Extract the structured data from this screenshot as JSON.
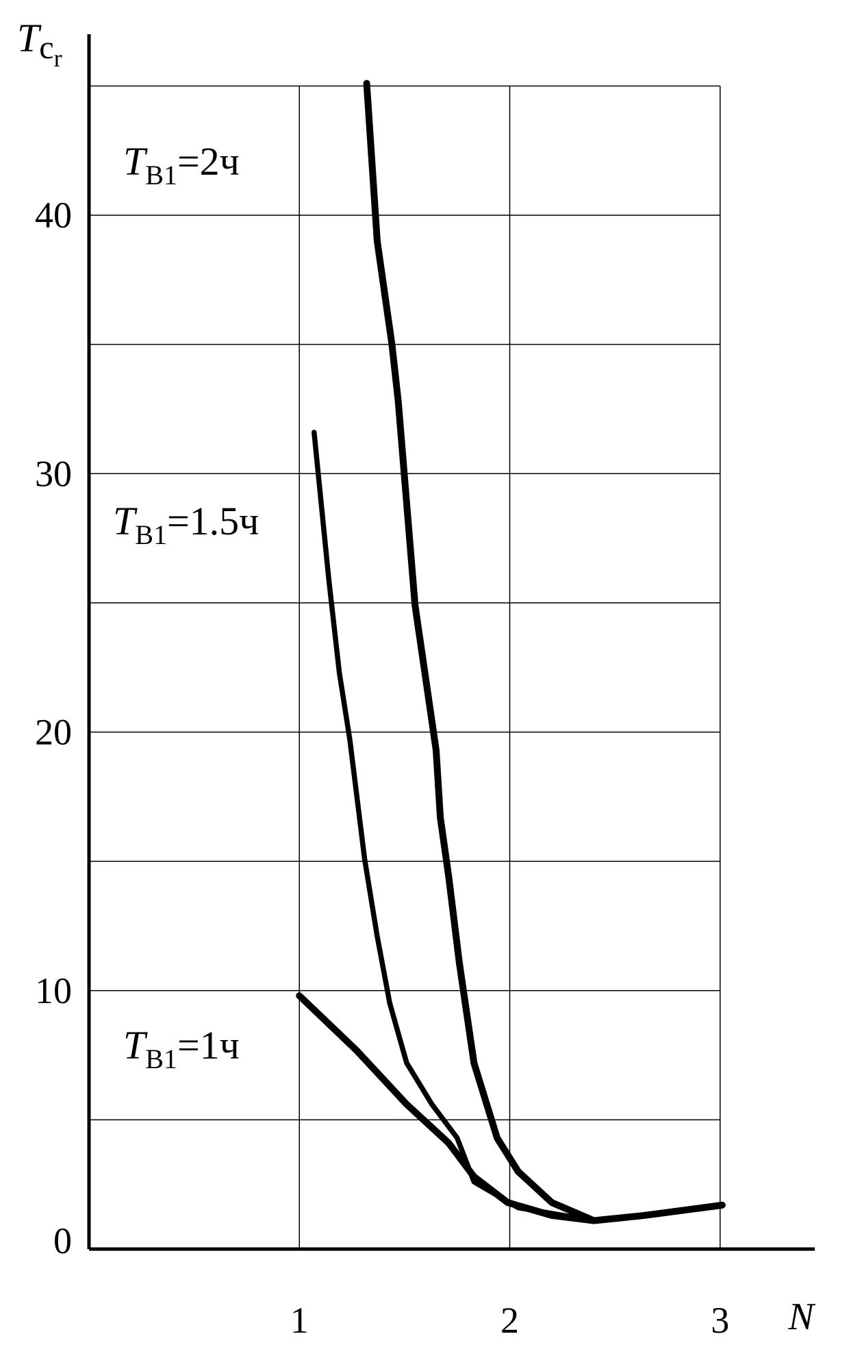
{
  "chart_data": {
    "type": "line",
    "x_label": "N",
    "y_label": {
      "symbol": "T",
      "subscript": "c",
      "subsubscript": "r"
    },
    "xlim": [
      0,
      3.45
    ],
    "ylim": [
      0,
      47
    ],
    "xticks": [
      1,
      2,
      3
    ],
    "yticks": [
      0,
      10,
      20,
      30,
      40
    ],
    "yminor": [
      5,
      15,
      25,
      35,
      45
    ],
    "grid": true,
    "color": "#000000",
    "series": [
      {
        "name": {
          "symbol": "T",
          "subscript": "B1",
          "text": "=2ч"
        },
        "x": [
          1.32,
          1.37,
          1.44,
          1.47,
          1.55,
          1.65,
          1.67,
          1.71,
          1.76,
          1.83,
          1.94,
          2.04,
          2.2,
          2.4,
          2.64,
          3.01
        ],
        "values": [
          45.1,
          39,
          35,
          32.8,
          24.9,
          19.3,
          16.7,
          14.4,
          11.1,
          7.2,
          4.3,
          3.0,
          1.8,
          1.1,
          1.3,
          1.7
        ]
      },
      {
        "name": {
          "symbol": "T",
          "subscript": "B1",
          "text": "=1.5ч"
        },
        "x": [
          1.07,
          1.14,
          1.19,
          1.24,
          1.31,
          1.37,
          1.43,
          1.51,
          1.63,
          1.75,
          1.83,
          2.04,
          2.4
        ],
        "values": [
          31.6,
          25.9,
          22.3,
          19.7,
          15.1,
          12.1,
          9.5,
          7.2,
          5.6,
          4.3,
          2.6,
          1.6,
          1.1
        ]
      },
      {
        "name": {
          "symbol": "T",
          "subscript": "B1",
          "text": "=1ч"
        },
        "x": [
          1.0,
          1.27,
          1.51,
          1.71,
          1.83,
          1.99,
          2.2,
          2.4
        ],
        "values": [
          9.8,
          7.7,
          5.6,
          4.1,
          2.8,
          1.8,
          1.3,
          1.1
        ]
      }
    ]
  }
}
